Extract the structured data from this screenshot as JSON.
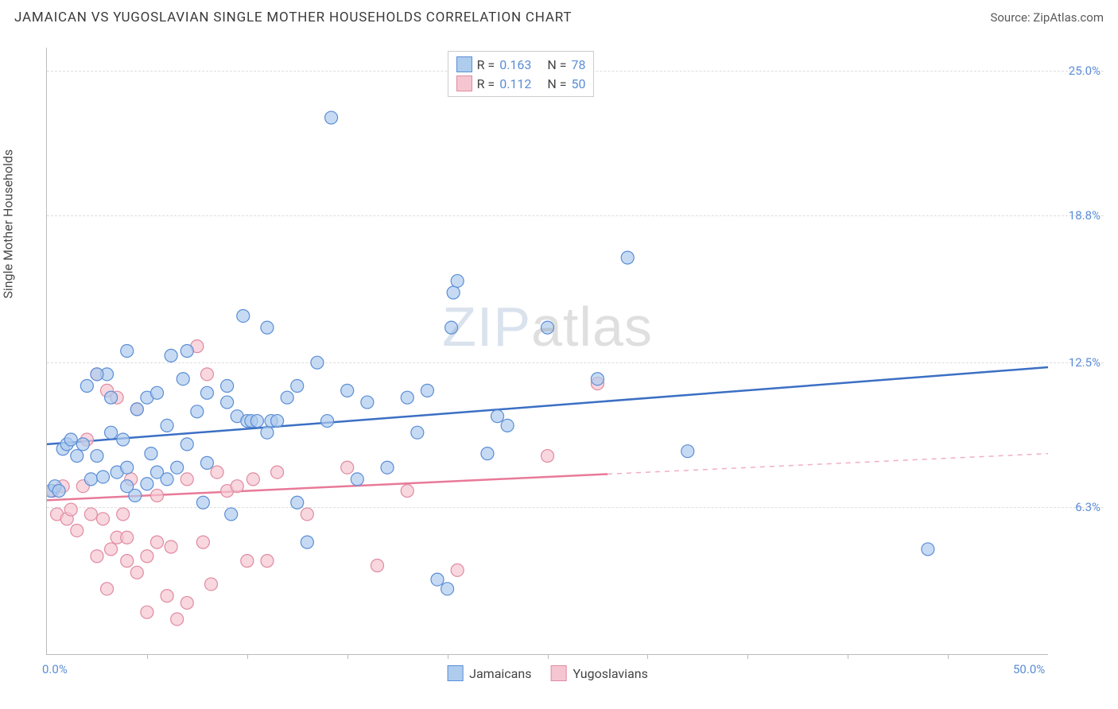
{
  "title": "JAMAICAN VS YUGOSLAVIAN SINGLE MOTHER HOUSEHOLDS CORRELATION CHART",
  "source": "Source: ZipAtlas.com",
  "ylabel": "Single Mother Households",
  "watermark_bold": "ZIP",
  "watermark_thin": "atlas",
  "chart": {
    "type": "scatter",
    "xlim": [
      0,
      50
    ],
    "ylim": [
      0,
      26
    ],
    "x_axis_labels": [
      {
        "value": 0,
        "label": "0.0%"
      },
      {
        "value": 50,
        "label": "50.0%"
      }
    ],
    "x_ticks": [
      5,
      10,
      15,
      20,
      25,
      30,
      35,
      40,
      45
    ],
    "y_gridlines": [
      {
        "value": 25.0,
        "label": "25.0%"
      },
      {
        "value": 18.8,
        "label": "18.8%"
      },
      {
        "value": 12.5,
        "label": "12.5%"
      },
      {
        "value": 6.3,
        "label": "6.3%"
      }
    ],
    "background_color": "#ffffff",
    "grid_color": "#dddddd",
    "axis_color": "#bbbbbb"
  },
  "series": {
    "jamaicans": {
      "label": "Jamaicans",
      "R": "0.163",
      "N": "78",
      "marker_fill": "#aeccee",
      "marker_stroke": "#5b8dd6",
      "marker_opacity": 0.7,
      "marker_radius": 8,
      "line_color": "#3b6fc4",
      "line_width": 2.5,
      "line_y_start": 9.0,
      "line_y_end": 12.3,
      "line_x_solid_end": 50,
      "points": [
        [
          0.2,
          7.0
        ],
        [
          0.4,
          7.2
        ],
        [
          0.6,
          7.0
        ],
        [
          0.8,
          8.8
        ],
        [
          1.0,
          9.0
        ],
        [
          1.2,
          9.2
        ],
        [
          1.5,
          8.5
        ],
        [
          1.8,
          9.0
        ],
        [
          2.0,
          11.5
        ],
        [
          2.2,
          7.5
        ],
        [
          2.5,
          8.5
        ],
        [
          2.8,
          7.6
        ],
        [
          3.0,
          12.0
        ],
        [
          3.2,
          9.5
        ],
        [
          3.2,
          11.0
        ],
        [
          3.5,
          7.8
        ],
        [
          3.8,
          9.2
        ],
        [
          4.0,
          13.0
        ],
        [
          4.0,
          8.0
        ],
        [
          4.4,
          6.8
        ],
        [
          4.0,
          7.2
        ],
        [
          4.5,
          10.5
        ],
        [
          5.0,
          7.3
        ],
        [
          5.0,
          11.0
        ],
        [
          5.2,
          8.6
        ],
        [
          5.5,
          7.8
        ],
        [
          5.5,
          11.2
        ],
        [
          6.0,
          9.8
        ],
        [
          6.0,
          7.5
        ],
        [
          6.2,
          12.8
        ],
        [
          6.5,
          8.0
        ],
        [
          6.8,
          11.8
        ],
        [
          7.0,
          9.0
        ],
        [
          7.0,
          13.0
        ],
        [
          7.5,
          10.4
        ],
        [
          8.0,
          8.2
        ],
        [
          8.0,
          11.2
        ],
        [
          2.5,
          12.0
        ],
        [
          9.0,
          11.5
        ],
        [
          9.2,
          6.0
        ],
        [
          9.0,
          10.8
        ],
        [
          9.5,
          10.2
        ],
        [
          10.0,
          10.0
        ],
        [
          9.8,
          14.5
        ],
        [
          10.2,
          10.0
        ],
        [
          10.5,
          10.0
        ],
        [
          11.0,
          9.5
        ],
        [
          11.0,
          14.0
        ],
        [
          11.2,
          10.0
        ],
        [
          11.5,
          10.0
        ],
        [
          12.0,
          11.0
        ],
        [
          12.5,
          6.5
        ],
        [
          13.0,
          4.8
        ],
        [
          13.5,
          12.5
        ],
        [
          14.0,
          10.0
        ],
        [
          14.2,
          23.0
        ],
        [
          15.0,
          11.3
        ],
        [
          15.5,
          7.5
        ],
        [
          16.0,
          10.8
        ],
        [
          17.0,
          8.0
        ],
        [
          18.0,
          11.0
        ],
        [
          18.5,
          9.5
        ],
        [
          19.5,
          3.2
        ],
        [
          19.0,
          11.3
        ],
        [
          20.0,
          2.8
        ],
        [
          20.2,
          14.0
        ],
        [
          20.3,
          15.5
        ],
        [
          20.5,
          16.0
        ],
        [
          22.0,
          8.6
        ],
        [
          22.5,
          10.2
        ],
        [
          23.0,
          9.8
        ],
        [
          25.0,
          14.0
        ],
        [
          27.5,
          11.8
        ],
        [
          29.0,
          17.0
        ],
        [
          32.0,
          8.7
        ],
        [
          44.0,
          4.5
        ],
        [
          12.5,
          11.5
        ],
        [
          7.8,
          6.5
        ]
      ]
    },
    "yugoslavians": {
      "label": "Yugoslavians",
      "R": "0.112",
      "N": "50",
      "marker_fill": "#f5c6d1",
      "marker_stroke": "#e08aa0",
      "marker_opacity": 0.7,
      "marker_radius": 8,
      "line_color": "#e87a98",
      "line_width": 2.5,
      "line_y_start": 6.6,
      "line_y_end": 8.6,
      "line_x_solid_end": 28,
      "points": [
        [
          0.3,
          7.0
        ],
        [
          0.5,
          6.0
        ],
        [
          0.8,
          7.2
        ],
        [
          1.0,
          5.8
        ],
        [
          1.2,
          6.2
        ],
        [
          1.5,
          5.3
        ],
        [
          1.8,
          7.2
        ],
        [
          2.0,
          9.2
        ],
        [
          2.2,
          6.0
        ],
        [
          2.5,
          4.2
        ],
        [
          2.5,
          12.0
        ],
        [
          2.8,
          5.8
        ],
        [
          3.0,
          11.3
        ],
        [
          3.2,
          4.5
        ],
        [
          3.5,
          5.0
        ],
        [
          3.5,
          11.0
        ],
        [
          3.8,
          6.0
        ],
        [
          4.0,
          5.0
        ],
        [
          4.0,
          4.0
        ],
        [
          4.2,
          7.5
        ],
        [
          4.5,
          3.5
        ],
        [
          4.5,
          10.5
        ],
        [
          5.0,
          4.2
        ],
        [
          5.0,
          1.8
        ],
        [
          5.5,
          6.8
        ],
        [
          5.5,
          4.8
        ],
        [
          6.0,
          2.5
        ],
        [
          6.2,
          4.6
        ],
        [
          6.5,
          1.5
        ],
        [
          7.0,
          2.2
        ],
        [
          3.0,
          2.8
        ],
        [
          7.0,
          7.5
        ],
        [
          7.5,
          13.2
        ],
        [
          7.8,
          4.8
        ],
        [
          8.0,
          12.0
        ],
        [
          8.5,
          7.8
        ],
        [
          8.2,
          3.0
        ],
        [
          9.0,
          7.0
        ],
        [
          9.5,
          7.2
        ],
        [
          10.0,
          4.0
        ],
        [
          10.3,
          7.5
        ],
        [
          11.0,
          4.0
        ],
        [
          11.5,
          7.8
        ],
        [
          13.0,
          6.0
        ],
        [
          15.0,
          8.0
        ],
        [
          16.5,
          3.8
        ],
        [
          18.0,
          7.0
        ],
        [
          20.5,
          3.6
        ],
        [
          25.0,
          8.5
        ],
        [
          27.5,
          11.6
        ]
      ]
    }
  },
  "legend_top": {
    "R_label": "R =",
    "N_label": "N ="
  }
}
